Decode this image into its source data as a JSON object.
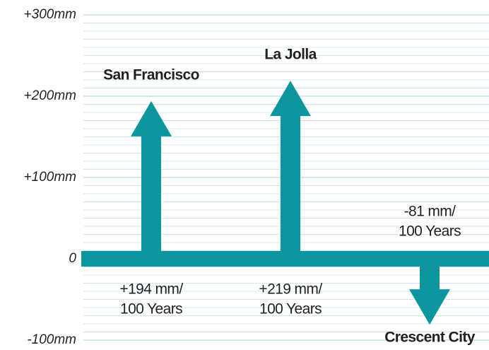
{
  "chart_data": {
    "type": "arrow",
    "categories": [
      "San Francisco",
      "La Jolla",
      "Crescent City"
    ],
    "values": [
      194,
      219,
      -81
    ],
    "value_labels": [
      [
        "+194 mm/",
        "100 Years"
      ],
      [
        "+219 mm/",
        "100 Years"
      ],
      [
        "-81 mm/",
        "100 Years"
      ]
    ],
    "color": "#0a959f",
    "ylim": [
      -100,
      300
    ],
    "yticks": [
      {
        "value": -100,
        "label": "-100mm"
      },
      0,
      {
        "value": 100,
        "label": "+100mm"
      },
      {
        "value": 200,
        "label": "+200mm"
      },
      {
        "value": 300,
        "label": "+300mm"
      }
    ],
    "grid": true
  }
}
